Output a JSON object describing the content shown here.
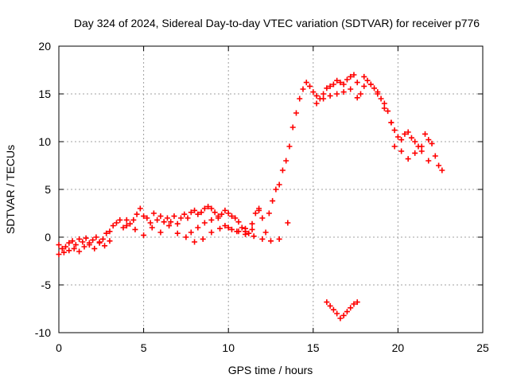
{
  "chart_data": {
    "type": "scatter",
    "title": "Day 324 of 2024, Sidereal Day-to-day VTEC variation (SDTVAR) for receiver p776",
    "xlabel": "GPS time / hours",
    "ylabel": "SDTVAR / TECUs",
    "xlim": [
      0,
      25
    ],
    "ylim": [
      -10,
      20
    ],
    "xticks": [
      "0",
      "5",
      "10",
      "15",
      "20",
      "25"
    ],
    "yticks": [
      "-10",
      "-5",
      "0",
      "5",
      "10",
      "15",
      "20"
    ],
    "grid": true,
    "marker": "+",
    "color": "#ff0000",
    "series": [
      {
        "name": "SDTVAR",
        "x": [
          0.0,
          0.2,
          0.4,
          0.6,
          0.8,
          1.0,
          1.2,
          1.4,
          1.6,
          1.8,
          2.0,
          2.2,
          2.4,
          2.6,
          2.8,
          3.0,
          3.2,
          3.4,
          3.6,
          3.8,
          4.0,
          4.2,
          4.4,
          4.6,
          4.8,
          5.0,
          5.2,
          5.4,
          5.6,
          5.8,
          6.0,
          6.2,
          6.4,
          6.6,
          6.8,
          7.0,
          7.2,
          7.4,
          7.6,
          7.8,
          8.0,
          8.2,
          8.4,
          8.6,
          8.8,
          9.0,
          9.2,
          9.4,
          9.6,
          9.8,
          10.0,
          10.2,
          10.4,
          10.6,
          10.8,
          11.0,
          11.2,
          11.4,
          11.6,
          11.8,
          12.0,
          12.2,
          12.4,
          12.6,
          12.8,
          13.0,
          13.2,
          13.4,
          13.6,
          13.8,
          14.0,
          14.2,
          14.4,
          14.6,
          14.8,
          15.0,
          15.2,
          15.4,
          15.6,
          15.8,
          16.0,
          16.2,
          16.4,
          16.6,
          16.8,
          17.0,
          17.2,
          17.4,
          17.6,
          17.8,
          18.0,
          18.2,
          18.4,
          18.6,
          18.8,
          19.0,
          19.2,
          19.4,
          19.6,
          19.8,
          20.0,
          20.2,
          20.4,
          20.6,
          20.8,
          21.0,
          21.2,
          21.4,
          21.6,
          21.8,
          22.0,
          22.2,
          22.4,
          22.6,
          0.0,
          0.3,
          0.6,
          0.9,
          1.2,
          1.5,
          1.8,
          2.1,
          2.4,
          2.7,
          3.0,
          4.0,
          4.5,
          5.0,
          5.5,
          6.0,
          6.5,
          7.0,
          7.5,
          8.0,
          8.5,
          9.0,
          9.5,
          10.0,
          10.5,
          11.0,
          11.5,
          12.0,
          12.5,
          13.0,
          13.5,
          7.8,
          8.2,
          8.6,
          9.0,
          9.4,
          9.8,
          10.2,
          10.6,
          11.0,
          11.4,
          11.8,
          15.2,
          15.6,
          16.0,
          16.4,
          16.8,
          17.2,
          17.6,
          18.0,
          18.4,
          18.8,
          19.2,
          19.6,
          19.8,
          20.2,
          20.6,
          21.0,
          21.4,
          21.8,
          15.8,
          16.0,
          16.2,
          16.4,
          16.6,
          16.8,
          17.0,
          17.2,
          17.4,
          17.6
        ],
        "y": [
          -0.8,
          -1.2,
          -1.0,
          -0.6,
          -0.4,
          -0.8,
          -0.2,
          -0.5,
          -0.1,
          -0.6,
          -0.3,
          0.0,
          -0.5,
          -0.2,
          0.4,
          0.6,
          1.2,
          1.5,
          1.8,
          1.0,
          1.2,
          1.4,
          1.8,
          2.4,
          3.0,
          2.2,
          2.0,
          1.5,
          2.5,
          1.8,
          2.2,
          1.6,
          2.0,
          1.6,
          2.2,
          1.4,
          2.0,
          2.4,
          2.0,
          2.6,
          2.8,
          2.4,
          2.6,
          3.0,
          3.2,
          3.0,
          2.6,
          2.2,
          2.4,
          2.8,
          2.5,
          2.2,
          2.0,
          1.6,
          1.0,
          0.6,
          0.4,
          0.8,
          2.5,
          3.0,
          2.0,
          0.5,
          2.5,
          3.8,
          5.0,
          5.5,
          7.0,
          8.0,
          9.5,
          11.5,
          13.0,
          14.5,
          15.5,
          16.2,
          15.8,
          15.2,
          14.8,
          14.5,
          15.0,
          15.6,
          15.8,
          16.0,
          16.4,
          16.2,
          16.0,
          16.5,
          16.8,
          17.0,
          16.2,
          15.0,
          16.8,
          16.4,
          16.0,
          15.6,
          15.0,
          14.5,
          14.0,
          13.2,
          12.0,
          11.2,
          10.5,
          10.2,
          10.8,
          11.0,
          10.4,
          10.0,
          9.5,
          9.0,
          10.8,
          10.2,
          9.8,
          8.5,
          7.5,
          7.0,
          -1.8,
          -1.6,
          -1.4,
          -1.2,
          -1.5,
          -1.0,
          -0.8,
          -1.2,
          -0.6,
          -0.9,
          -0.4,
          1.8,
          0.8,
          0.2,
          1.0,
          0.5,
          1.2,
          0.4,
          0.0,
          -0.5,
          -0.2,
          0.5,
          0.9,
          1.0,
          0.6,
          0.3,
          0.1,
          -0.2,
          -0.4,
          -0.2,
          1.5,
          0.5,
          1.0,
          1.5,
          1.8,
          2.0,
          1.2,
          0.8,
          0.6,
          0.9,
          1.4,
          2.8,
          14.0,
          14.5,
          14.8,
          15.0,
          15.2,
          15.5,
          14.6,
          15.8,
          16.0,
          15.2,
          13.5,
          12.0,
          9.5,
          9.0,
          8.2,
          8.8,
          9.5,
          8.0,
          -6.8,
          -7.2,
          -7.6,
          -8.0,
          -8.5,
          -8.2,
          -7.8,
          -7.4,
          -7.0,
          -6.8
        ]
      }
    ]
  }
}
